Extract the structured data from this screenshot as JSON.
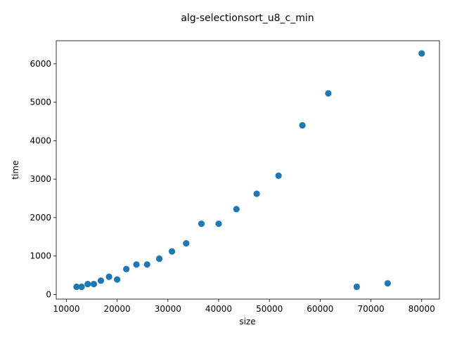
{
  "chart_data": {
    "type": "scatter",
    "title": "alg-selectionsort_u8_c_min",
    "xlabel": "size",
    "ylabel": "time",
    "xlim": [
      8000,
      83500
    ],
    "ylim": [
      -120,
      6600
    ],
    "xticks": [
      10000,
      20000,
      30000,
      40000,
      50000,
      60000,
      70000,
      80000
    ],
    "yticks": [
      0,
      1000,
      2000,
      3000,
      4000,
      5000,
      6000
    ],
    "marker_color": "#1f77b4",
    "grid": false,
    "legend": "none",
    "points": [
      {
        "x": 12000,
        "y": 200
      },
      {
        "x": 13000,
        "y": 200
      },
      {
        "x": 14200,
        "y": 270
      },
      {
        "x": 15400,
        "y": 270
      },
      {
        "x": 16800,
        "y": 360
      },
      {
        "x": 18400,
        "y": 460
      },
      {
        "x": 20000,
        "y": 390
      },
      {
        "x": 21800,
        "y": 660
      },
      {
        "x": 23800,
        "y": 780
      },
      {
        "x": 25900,
        "y": 780
      },
      {
        "x": 28300,
        "y": 930
      },
      {
        "x": 30800,
        "y": 1120
      },
      {
        "x": 33600,
        "y": 1330
      },
      {
        "x": 36600,
        "y": 1840
      },
      {
        "x": 40000,
        "y": 1840
      },
      {
        "x": 43500,
        "y": 2220
      },
      {
        "x": 47500,
        "y": 2620
      },
      {
        "x": 51800,
        "y": 3090
      },
      {
        "x": 56500,
        "y": 4400
      },
      {
        "x": 61600,
        "y": 5230
      },
      {
        "x": 67200,
        "y": 200
      },
      {
        "x": 73300,
        "y": 290
      },
      {
        "x": 80000,
        "y": 6270
      }
    ]
  }
}
